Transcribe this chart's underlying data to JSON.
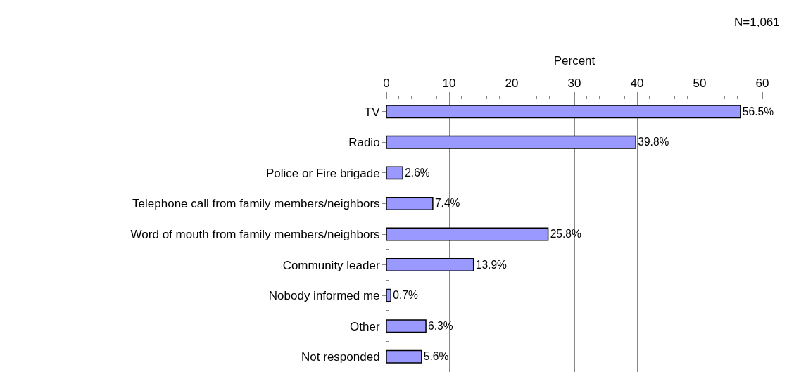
{
  "chart_data": {
    "type": "bar",
    "orientation": "horizontal",
    "xlabel": "Percent",
    "categories": [
      "TV",
      "Radio",
      "Police or Fire brigade",
      "Telephone call from family members/neighbors",
      "Word of mouth from family members/neighbors",
      "Community leader",
      "Nobody informed me",
      "Other",
      "Not responded"
    ],
    "values": [
      56.5,
      39.8,
      2.6,
      7.4,
      25.8,
      13.9,
      0.7,
      6.3,
      5.6
    ],
    "value_labels": [
      "56.5%",
      "39.8%",
      "2.6%",
      "7.4%",
      "25.8%",
      "13.9%",
      "0.7%",
      "6.3%",
      "5.6%"
    ],
    "color": "#9999ff",
    "xlim": [
      0,
      60
    ],
    "xticks": [
      0,
      10,
      20,
      30,
      40,
      50,
      60
    ],
    "grid": "x",
    "legend": false,
    "annotations": [
      "N=1,061"
    ]
  }
}
